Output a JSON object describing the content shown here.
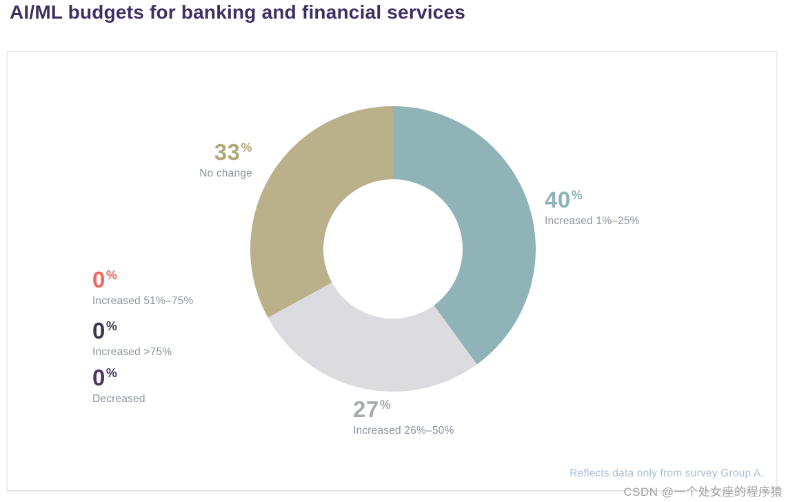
{
  "percent_sign": "%",
  "watermark": "CSDN @一个处女座的程序猿",
  "colors": {
    "title": "#3e2f63",
    "caption": "#8a939b",
    "note": "#a9bed4",
    "watermark": "#9f9f9f",
    "card_border": "#e2e2e5",
    "background": "#ffffff"
  },
  "chart_data": {
    "type": "pie",
    "subtype": "donut",
    "title": "AI/ML budgets for banking and financial services",
    "note": "Reflects data only from survey Group A.",
    "unit": "%",
    "start_angle_deg": 0,
    "direction": "clockwise",
    "inner_radius_ratio": 0.49,
    "legend_position": "callout-labels",
    "segments": [
      {
        "label": "Increased 1%–25%",
        "value": 40,
        "color": "#8fb3b7",
        "label_color": "#8fb3b7"
      },
      {
        "label": "Increased 26%–50%",
        "value": 27,
        "color": "#dcdce0",
        "label_color": "#a7aaae"
      },
      {
        "label": "No change",
        "value": 33,
        "color": "#bab089",
        "label_color": "#b2a87c"
      },
      {
        "label": "Increased 51%–75%",
        "value": 0,
        "color": "#f5655d",
        "label_color": "#f5655d"
      },
      {
        "label": "Increased >75%",
        "value": 0,
        "color": "#363a4d",
        "label_color": "#363a4d"
      },
      {
        "label": "Decreased",
        "value": 0,
        "color": "#4b3364",
        "label_color": "#4b3364"
      }
    ]
  }
}
